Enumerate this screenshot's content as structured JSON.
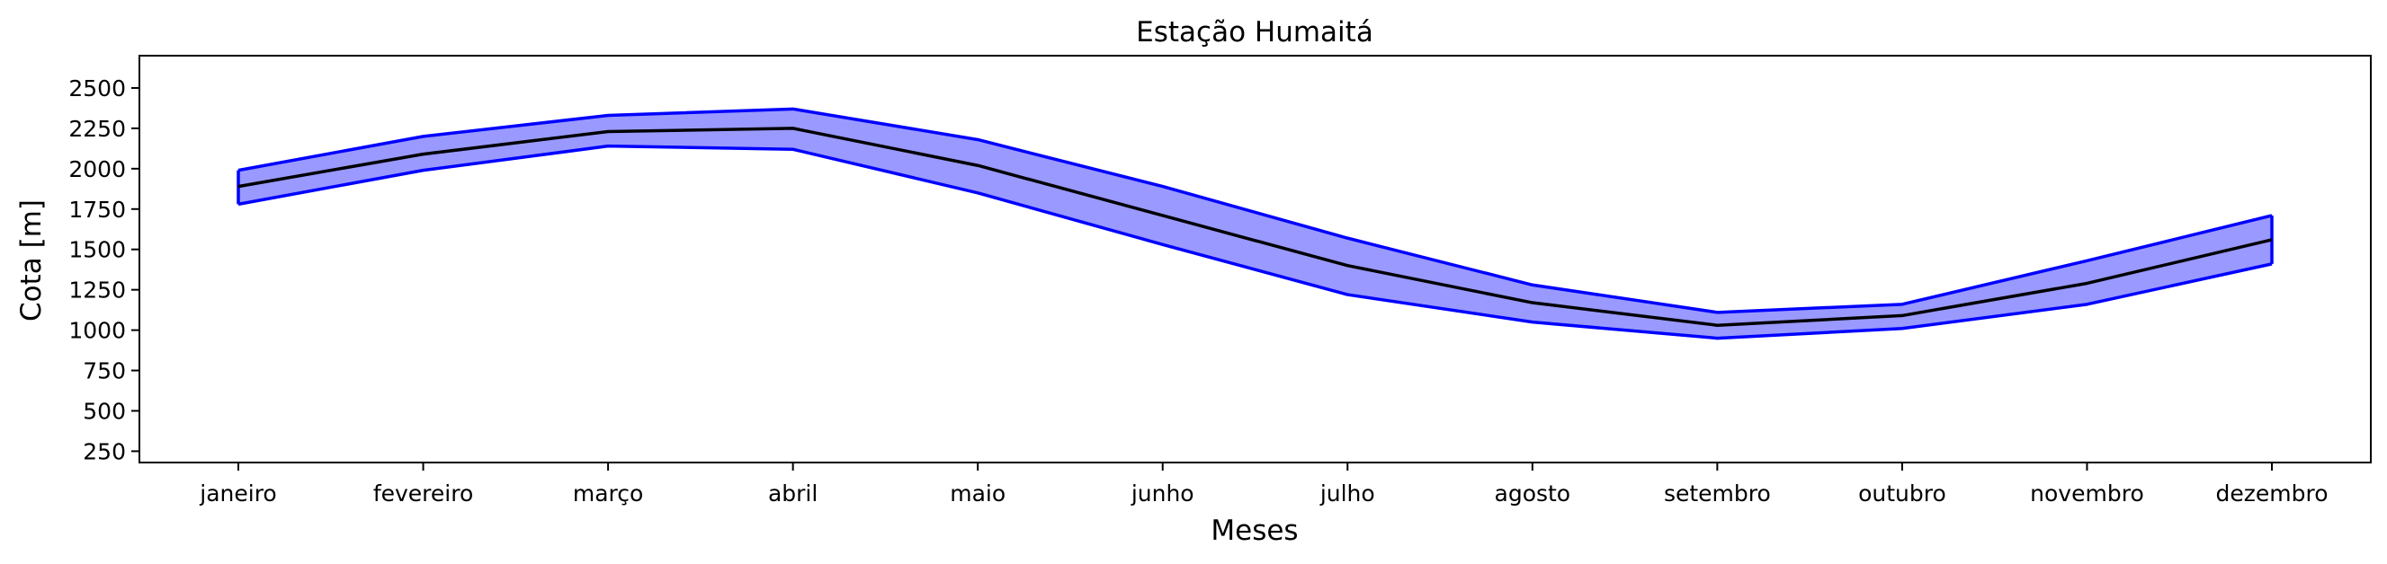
{
  "chart_data": {
    "type": "line",
    "title": "Estação Humaitá",
    "xlabel": "Meses",
    "ylabel": "Cota [m]",
    "categories": [
      "janeiro",
      "fevereiro",
      "março",
      "abril",
      "maio",
      "junho",
      "julho",
      "agosto",
      "setembro",
      "outubro",
      "novembro",
      "dezembro"
    ],
    "ylim": [
      180,
      2700
    ],
    "yticks": [
      250,
      500,
      750,
      1000,
      1250,
      1500,
      1750,
      2000,
      2250,
      2500
    ],
    "grid": false,
    "series": [
      {
        "role": "upper_band",
        "values": [
          1990,
          2200,
          2330,
          2370,
          2180,
          1890,
          1570,
          1280,
          1110,
          1160,
          1430,
          1710
        ]
      },
      {
        "role": "mean",
        "values": [
          1890,
          2090,
          2230,
          2250,
          2020,
          1710,
          1400,
          1170,
          1030,
          1090,
          1290,
          1560
        ]
      },
      {
        "role": "lower_band",
        "values": [
          1780,
          1990,
          2140,
          2120,
          1850,
          1530,
          1220,
          1050,
          950,
          1010,
          1160,
          1410
        ]
      }
    ],
    "colors": {
      "band_fill": "#9999ff",
      "band_edge": "#0000ff",
      "mean_line": "#000000"
    }
  }
}
